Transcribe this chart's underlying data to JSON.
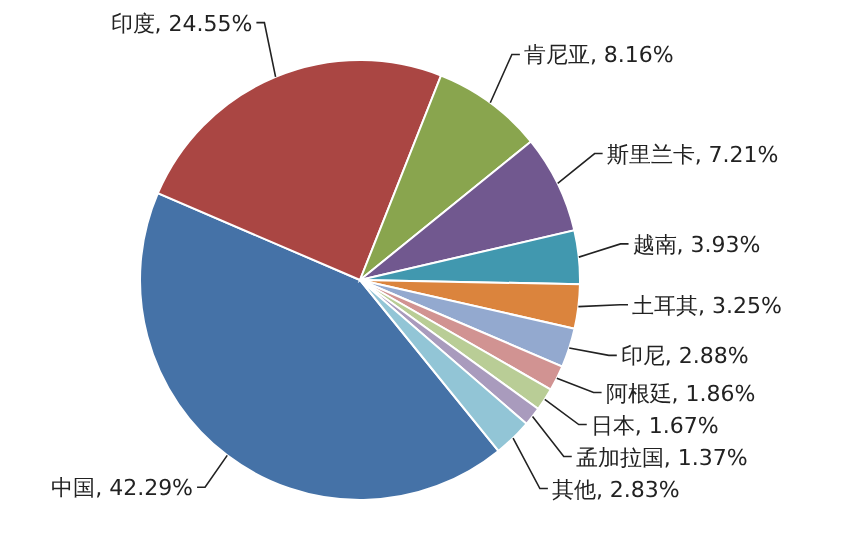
{
  "chart_data": {
    "type": "pie",
    "categories": [
      "中国",
      "印度",
      "肯尼亚",
      "斯里兰卡",
      "越南",
      "土耳其",
      "印尼",
      "阿根廷",
      "日本",
      "孟加拉国",
      "其他"
    ],
    "values": [
      42.29,
      24.55,
      8.16,
      7.21,
      3.93,
      3.25,
      2.88,
      1.86,
      1.67,
      1.37,
      2.83
    ],
    "colors": [
      "#4572a7",
      "#aa4643",
      "#89a54e",
      "#71588f",
      "#4198af",
      "#db843d",
      "#93a9cf",
      "#d19392",
      "#b9cd96",
      "#a99bbd",
      "#92c5d6"
    ],
    "value_labels": [
      "42.29%",
      "24.55%",
      "8.16%",
      "7.21%",
      "3.93%",
      "3.25%",
      "2.88%",
      "1.86%",
      "1.67%",
      "1.37%",
      "2.83%"
    ]
  }
}
